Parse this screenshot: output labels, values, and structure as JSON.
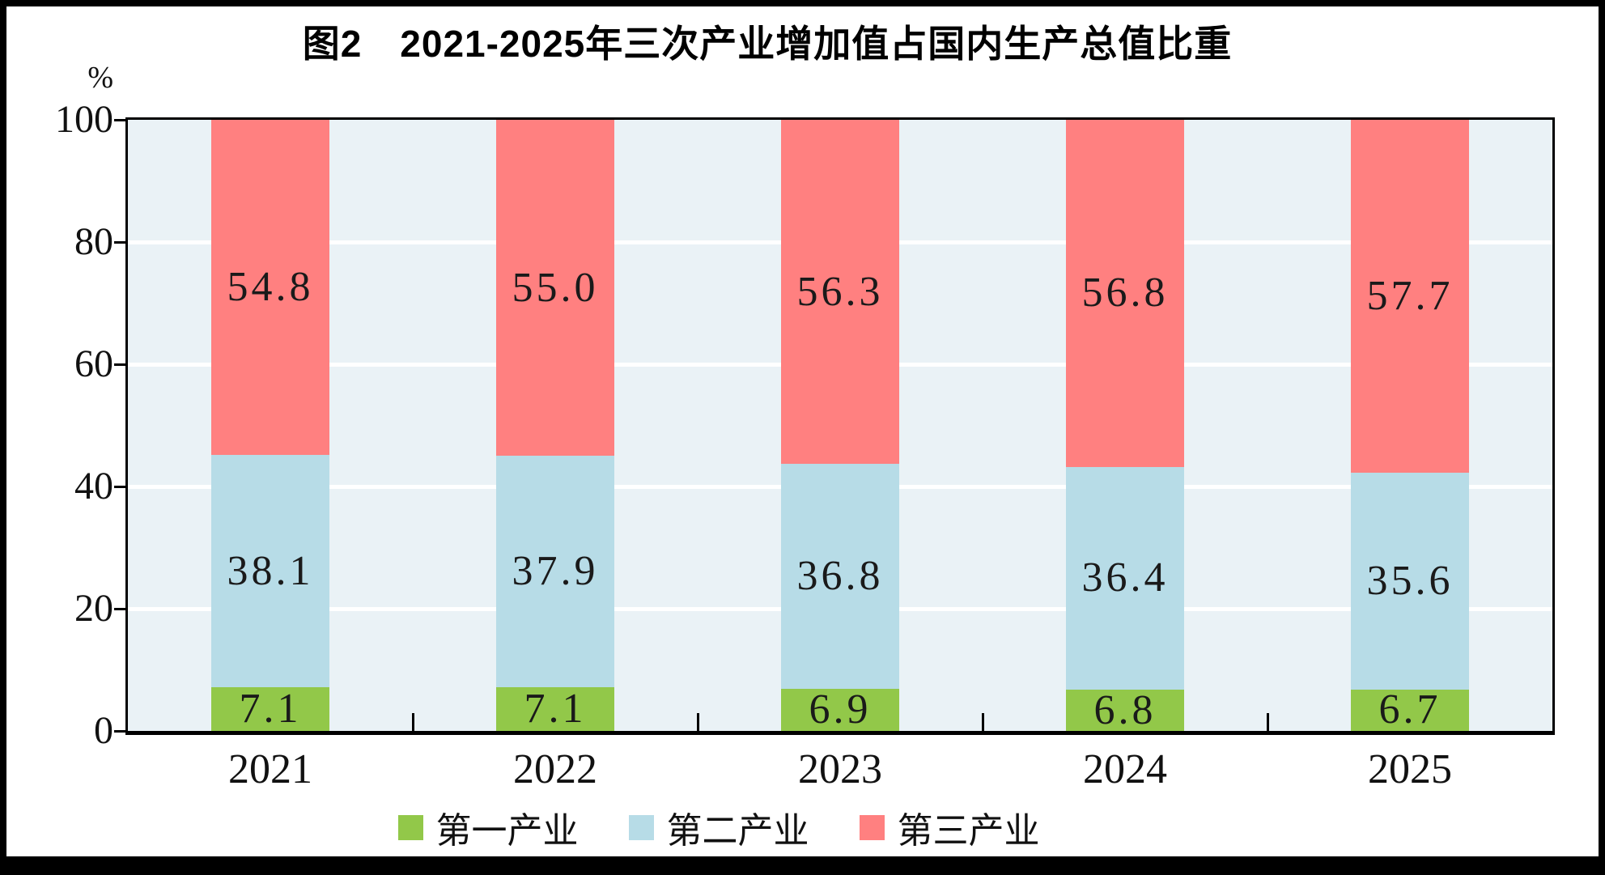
{
  "figure": {
    "title": "图2　2021-2025年三次产业增加值占国内生产总值比重"
  },
  "chart_data": {
    "type": "bar",
    "stacked": true,
    "title": "图2　2021-2025年三次产业增加值占国内生产总值比重",
    "ylabel": "%",
    "ylim": [
      0,
      100
    ],
    "yticks": [
      0,
      20,
      40,
      60,
      80,
      100
    ],
    "grid": "horizontal-white-lines",
    "legend_position": "bottom",
    "categories": [
      "2021",
      "2022",
      "2023",
      "2024",
      "2025"
    ],
    "series": [
      {
        "name": "第一产业",
        "color": "#92C849",
        "values": [
          7.1,
          7.1,
          6.9,
          6.8,
          6.7
        ]
      },
      {
        "name": "第二产业",
        "color": "#B7DCE7",
        "values": [
          38.1,
          37.9,
          36.8,
          36.4,
          35.6
        ]
      },
      {
        "name": "第三产业",
        "color": "#FF8080",
        "values": [
          54.8,
          55.0,
          56.3,
          56.8,
          57.7
        ]
      }
    ],
    "plot_background": "#EAF2F6",
    "gridline_color": "#FFFFFF",
    "axis_color": "#000000",
    "value_label_color": "#1A1A1A"
  }
}
